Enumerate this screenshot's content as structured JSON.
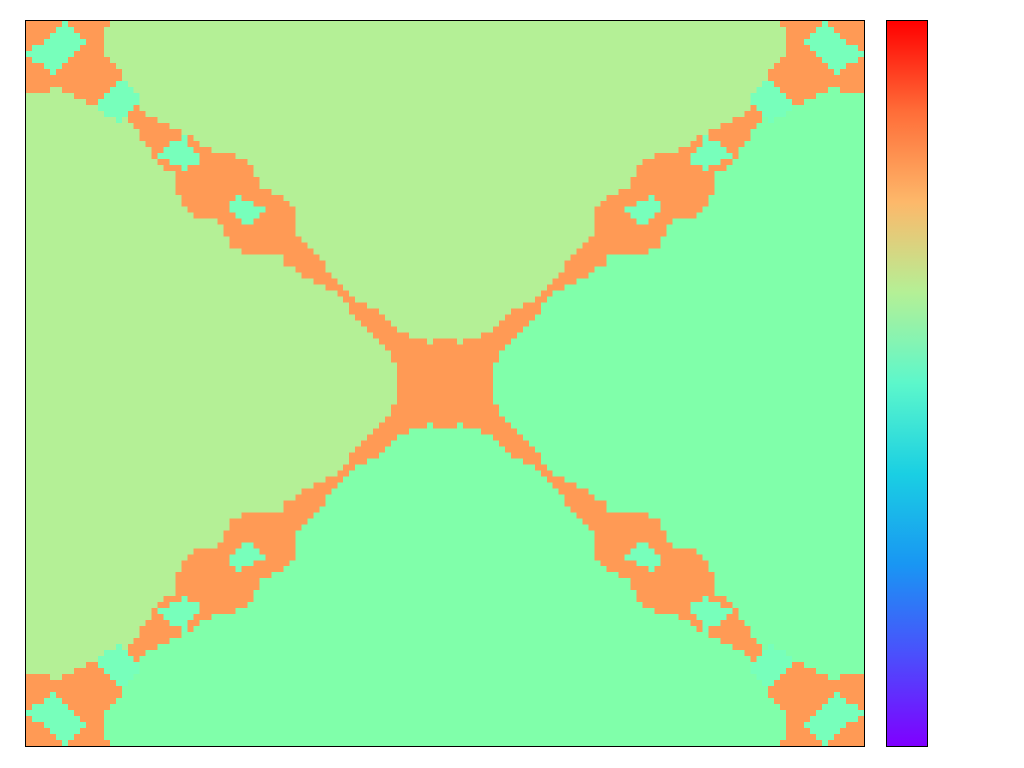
{
  "chart_data": {
    "type": "heatmap",
    "title": "",
    "xlabel": "",
    "ylabel": "",
    "grid": false,
    "colormap": "rainbow",
    "colorbar": true,
    "categories": {
      "lime": "#b4f096",
      "mint": "#80ffaa",
      "orange": "#ff9a55",
      "aqua": "#77ffbb"
    },
    "description_values": {
      "top_and_left_region": "lime",
      "bottom_and_right_region": "mint",
      "diagonal_fractal_boundary": "orange",
      "enclosed_lobes": "aqua"
    },
    "grid_cells": [
      140,
      121
    ]
  }
}
